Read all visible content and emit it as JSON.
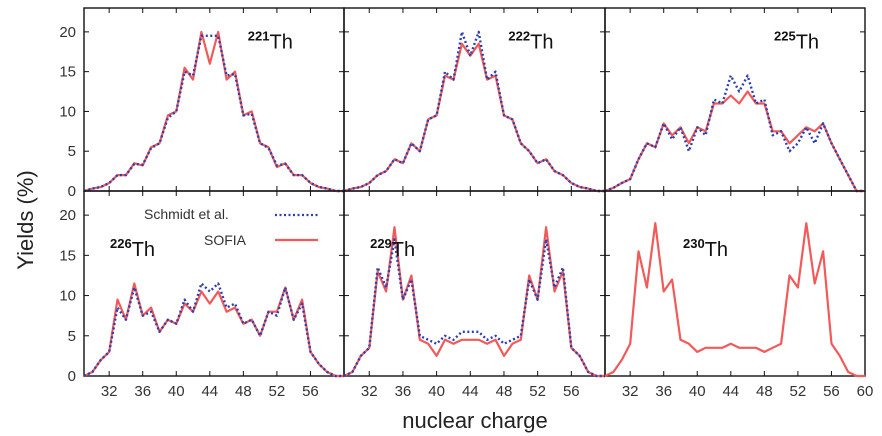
{
  "figure": {
    "ylabel": "Yields (%)",
    "xlabel": "nuclear charge"
  },
  "legend": {
    "entries": [
      {
        "label": "Schmidt et al.",
        "color": "#2b3fb0",
        "style": "dotted"
      },
      {
        "label": "SOFIA",
        "color": "#f25a5a",
        "style": "solid"
      }
    ]
  },
  "chart_data": [
    {
      "type": "line",
      "panel": "top-left",
      "mass": "221",
      "element": "Th",
      "xlim": [
        29,
        60
      ],
      "ylim": [
        0,
        23
      ],
      "yticks": [
        0,
        5,
        10,
        15,
        20
      ],
      "x": [
        29,
        30,
        31,
        32,
        33,
        34,
        35,
        36,
        37,
        38,
        39,
        40,
        41,
        42,
        43,
        44,
        45,
        46,
        47,
        48,
        49,
        50,
        51,
        52,
        53,
        54,
        55,
        56,
        57,
        58,
        59,
        60
      ],
      "series": [
        {
          "name": "SOFIA",
          "values": [
            0,
            0.3,
            0.5,
            1,
            2,
            2,
            3.5,
            3.2,
            5.5,
            6,
            9.5,
            10,
            15.5,
            14,
            20,
            16,
            20,
            14,
            15,
            9.5,
            10,
            6,
            5.5,
            3,
            3.5,
            2,
            2,
            1,
            0.5,
            0.3,
            0,
            0
          ]
        },
        {
          "name": "Schmidt et al.",
          "values": [
            0,
            0.3,
            0.5,
            1,
            2,
            2,
            3.4,
            3.3,
            5.4,
            6,
            9.2,
            10,
            15,
            14.5,
            19.5,
            19.5,
            19.5,
            14.5,
            14.7,
            9.5,
            9.7,
            6,
            5.4,
            3.2,
            3.4,
            2,
            2,
            1,
            0.5,
            0.3,
            0,
            0
          ]
        }
      ]
    },
    {
      "type": "line",
      "panel": "top-middle",
      "mass": "222",
      "element": "Th",
      "xlim": [
        29,
        60
      ],
      "ylim": [
        0,
        23
      ],
      "x": [
        29,
        30,
        31,
        32,
        33,
        34,
        35,
        36,
        37,
        38,
        39,
        40,
        41,
        42,
        43,
        44,
        45,
        46,
        47,
        48,
        49,
        50,
        51,
        52,
        53,
        54,
        55,
        56,
        57,
        58,
        59,
        60
      ],
      "series": [
        {
          "name": "SOFIA",
          "values": [
            0,
            0.3,
            0.5,
            1,
            2,
            2.5,
            4,
            3.5,
            6,
            5,
            9,
            9.5,
            14.5,
            14,
            18.5,
            17,
            18.5,
            14,
            14.5,
            9.5,
            9,
            6,
            5,
            3.5,
            4,
            2.5,
            2,
            1,
            0.5,
            0.3,
            0,
            0
          ]
        },
        {
          "name": "Schmidt et al.",
          "values": [
            0,
            0.3,
            0.5,
            1,
            2,
            2.5,
            4,
            3.5,
            6,
            5,
            9,
            9.5,
            15,
            14,
            20,
            17,
            20,
            14,
            15,
            9.5,
            9,
            6,
            5,
            3.5,
            4,
            2.5,
            2,
            1,
            0.5,
            0.3,
            0,
            0
          ]
        }
      ]
    },
    {
      "type": "line",
      "panel": "top-right",
      "mass": "225",
      "element": "Th",
      "xlim": [
        29,
        60
      ],
      "ylim": [
        0,
        23
      ],
      "x": [
        29,
        30,
        31,
        32,
        33,
        34,
        35,
        36,
        37,
        38,
        39,
        40,
        41,
        42,
        43,
        44,
        45,
        46,
        47,
        48,
        49,
        50,
        51,
        52,
        53,
        54,
        55,
        56,
        57,
        58,
        59,
        60
      ],
      "series": [
        {
          "name": "SOFIA",
          "values": [
            0,
            0.4,
            1,
            1.5,
            4,
            6,
            5.5,
            8.5,
            7,
            8,
            6,
            8,
            7.5,
            11,
            11,
            12,
            11,
            12.5,
            11,
            11,
            7.5,
            7.5,
            6,
            7,
            8,
            7.5,
            8.5,
            6,
            4,
            2,
            0,
            0
          ]
        },
        {
          "name": "Schmidt et al.",
          "values": [
            0,
            0.4,
            1,
            1.5,
            4,
            6,
            5.5,
            8.5,
            6.5,
            8,
            5,
            8,
            7,
            11.5,
            11,
            14.5,
            12.5,
            14.5,
            11,
            11.5,
            7,
            7.5,
            5,
            6,
            8,
            6,
            8.5,
            6,
            4,
            2,
            0,
            0
          ]
        }
      ]
    },
    {
      "type": "line",
      "panel": "bottom-left",
      "mass": "226",
      "element": "Th",
      "xlim": [
        29,
        60
      ],
      "ylim": [
        0,
        23
      ],
      "yticks": [
        0,
        5,
        10,
        15,
        20
      ],
      "xticks": [
        32,
        36,
        40,
        44,
        48,
        52,
        56
      ],
      "x": [
        29,
        30,
        31,
        32,
        33,
        34,
        35,
        36,
        37,
        38,
        39,
        40,
        41,
        42,
        43,
        44,
        45,
        46,
        47,
        48,
        49,
        50,
        51,
        52,
        53,
        54,
        55,
        56,
        57,
        58,
        59,
        60
      ],
      "series": [
        {
          "name": "SOFIA",
          "values": [
            0,
            0.5,
            2,
            3,
            9.5,
            7,
            11.5,
            7.5,
            8.5,
            5.5,
            7,
            6.5,
            9,
            8,
            10.5,
            9,
            10.5,
            8,
            8.5,
            6.5,
            7,
            5,
            8,
            8,
            11,
            7,
            9.5,
            3,
            1.5,
            0.5,
            0,
            0
          ]
        },
        {
          "name": "Schmidt et al.",
          "values": [
            0,
            0.5,
            2,
            3,
            8.5,
            7,
            11,
            7.5,
            8,
            5.5,
            7,
            6.5,
            9.5,
            8,
            11.5,
            10.5,
            11.5,
            8.5,
            9,
            6.5,
            7,
            5,
            8,
            7.5,
            11,
            7,
            9,
            3,
            1.5,
            0.5,
            0,
            0
          ]
        }
      ]
    },
    {
      "type": "line",
      "panel": "bottom-middle",
      "mass": "229",
      "element": "Th",
      "xlim": [
        29,
        60
      ],
      "ylim": [
        0,
        23
      ],
      "xticks": [
        32,
        36,
        40,
        44,
        48,
        52,
        56
      ],
      "x": [
        29,
        30,
        31,
        32,
        33,
        34,
        35,
        36,
        37,
        38,
        39,
        40,
        41,
        42,
        43,
        44,
        45,
        46,
        47,
        48,
        49,
        50,
        51,
        52,
        53,
        54,
        55,
        56,
        57,
        58,
        59,
        60
      ],
      "series": [
        {
          "name": "SOFIA",
          "values": [
            0,
            0.5,
            2.5,
            3.5,
            13,
            10.5,
            18.5,
            9.5,
            12.5,
            4.5,
            4,
            2.5,
            4.5,
            4,
            4.5,
            4.5,
            4.5,
            4,
            4.5,
            2.5,
            4,
            4.5,
            12.5,
            9.5,
            18.5,
            10.5,
            13,
            3.5,
            2.5,
            0.5,
            0,
            0
          ]
        },
        {
          "name": "Schmidt et al.",
          "values": [
            0,
            0.5,
            2.5,
            3.5,
            13.5,
            11,
            17,
            9.5,
            12,
            5,
            4.5,
            4,
            5,
            4.5,
            5.5,
            5.5,
            5.5,
            4.5,
            5,
            4,
            4.5,
            5,
            12,
            9.5,
            17,
            11,
            13.5,
            3.5,
            2.5,
            0.5,
            0,
            0
          ]
        }
      ]
    },
    {
      "type": "line",
      "panel": "bottom-right",
      "mass": "230",
      "element": "Th",
      "xlim": [
        29,
        60
      ],
      "ylim": [
        0,
        23
      ],
      "xticks": [
        32,
        36,
        40,
        44,
        48,
        52,
        56,
        60
      ],
      "x": [
        29,
        30,
        31,
        32,
        33,
        34,
        35,
        36,
        37,
        38,
        39,
        40,
        41,
        42,
        43,
        44,
        45,
        46,
        47,
        48,
        49,
        50,
        51,
        52,
        53,
        54,
        55,
        56,
        57,
        58,
        59,
        60
      ],
      "series": [
        {
          "name": "SOFIA",
          "values": [
            0,
            0.5,
            2,
            4,
            15.5,
            11,
            19,
            10.5,
            12,
            4.5,
            4,
            3,
            3.5,
            3.5,
            3.5,
            4,
            3.5,
            3.5,
            3.5,
            3,
            3.5,
            4,
            12.5,
            11,
            19,
            11.5,
            15.5,
            4,
            2.5,
            0.5,
            0,
            0
          ]
        }
      ]
    }
  ]
}
